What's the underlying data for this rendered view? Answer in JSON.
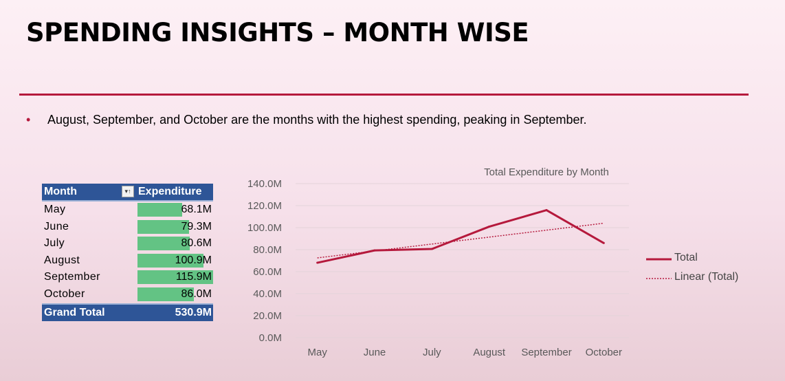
{
  "slide": {
    "title": "SPENDING INSIGHTS – MONTH WISE",
    "bullet_dot": "•",
    "bullet": "August, September, and October are the months with the highest spending, peaking in September."
  },
  "pivot_table": {
    "header_month": "Month",
    "header_expenditure": "Expenditure",
    "filter_icon": "▾↑",
    "rows": [
      {
        "month": "May",
        "value_label": "68.1M",
        "value": 68.1
      },
      {
        "month": "June",
        "value_label": "79.3M",
        "value": 79.3
      },
      {
        "month": "July",
        "value_label": "80.6M",
        "value": 80.6
      },
      {
        "month": "August",
        "value_label": "100.9M",
        "value": 100.9
      },
      {
        "month": "September",
        "value_label": "115.9M",
        "value": 115.9
      },
      {
        "month": "October",
        "value_label": "86.0M",
        "value": 86.0
      }
    ],
    "total_label": "Grand Total",
    "total_value": "530.9M"
  },
  "colors": {
    "accent": "#b5193c",
    "table_header": "#2e5597",
    "data_bar": "#63c384"
  },
  "chart_data": {
    "type": "line",
    "title": "Total Expenditure by Month",
    "categories": [
      "May",
      "June",
      "July",
      "August",
      "September",
      "October"
    ],
    "series": [
      {
        "name": "Total",
        "values": [
          68.1,
          79.3,
          80.6,
          100.9,
          115.9,
          86.0
        ],
        "color": "#b5193c",
        "style": "solid"
      },
      {
        "name": "Linear (Total)",
        "values": [
          72.5,
          78.8,
          85.1,
          91.4,
          97.7,
          104.0
        ],
        "color": "#b5193c",
        "style": "dotted"
      }
    ],
    "y_ticks": [
      "0.0M",
      "20.0M",
      "40.0M",
      "60.0M",
      "80.0M",
      "100.0M",
      "120.0M",
      "140.0M"
    ],
    "ylim": [
      0,
      140
    ],
    "y_step": 20,
    "grid": true,
    "legend_position": "right"
  }
}
